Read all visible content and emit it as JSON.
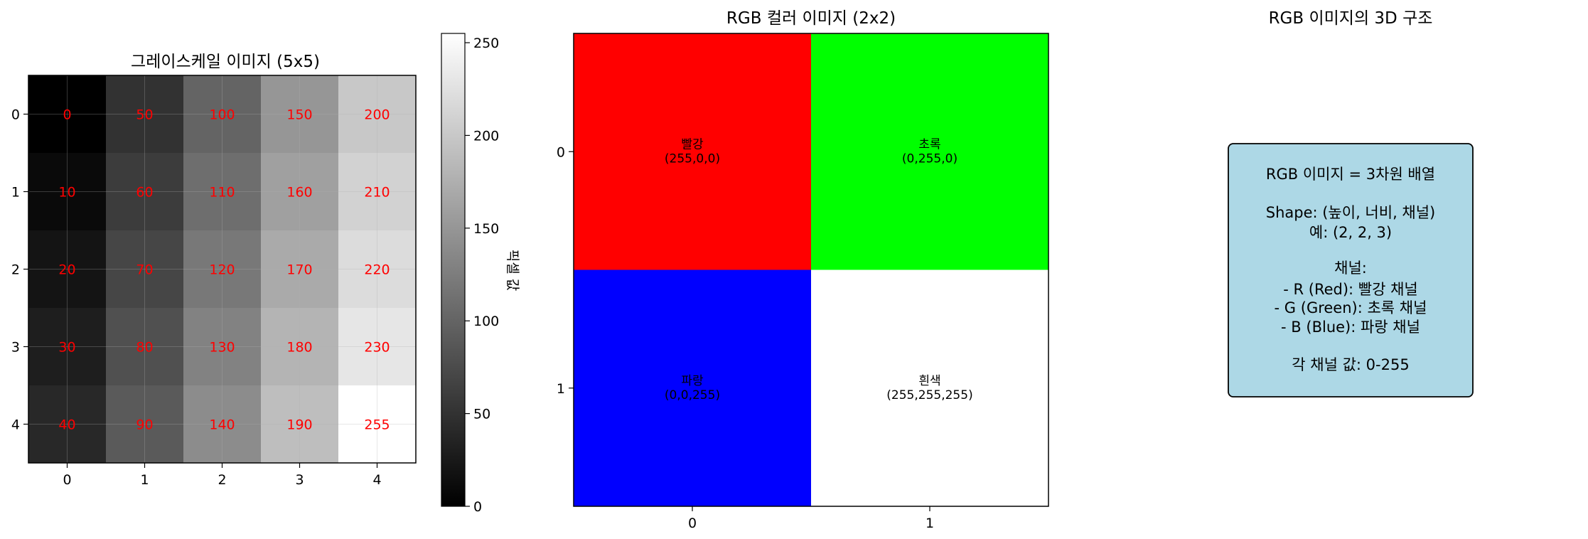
{
  "chart_data": [
    {
      "type": "heatmap",
      "title": "그레이스케일 이미지 (5x5)",
      "x_ticks": [
        "0",
        "1",
        "2",
        "3",
        "4"
      ],
      "y_ticks": [
        "0",
        "1",
        "2",
        "3",
        "4"
      ],
      "values": [
        [
          0,
          50,
          100,
          150,
          200
        ],
        [
          10,
          60,
          110,
          160,
          210
        ],
        [
          20,
          70,
          120,
          170,
          220
        ],
        [
          30,
          80,
          130,
          180,
          230
        ],
        [
          40,
          90,
          140,
          190,
          255
        ]
      ],
      "colormap": "gray",
      "value_range": [
        0,
        255
      ],
      "cell_label_color": "#ff0000",
      "colorbar": {
        "label": "픽셀 값",
        "ticks": [
          "0",
          "50",
          "100",
          "150",
          "200",
          "250"
        ],
        "tick_values": [
          0,
          50,
          100,
          150,
          200,
          250
        ]
      },
      "grid": true
    },
    {
      "type": "heatmap",
      "title": "RGB 컬러 이미지 (2x2)",
      "x_ticks": [
        "0",
        "1"
      ],
      "y_ticks": [
        "0",
        "1"
      ],
      "cells": [
        [
          {
            "name": "빨강",
            "rgb": "(255,0,0)",
            "color": "#ff0000"
          },
          {
            "name": "초록",
            "rgb": "(0,255,0)",
            "color": "#00ff00"
          }
        ],
        [
          {
            "name": "파랑",
            "rgb": "(0,0,255)",
            "color": "#0000ff"
          },
          {
            "name": "흰색",
            "rgb": "(255,255,255)",
            "color": "#ffffff"
          }
        ]
      ]
    }
  ],
  "info_panel": {
    "title": "RGB 이미지의 3D 구조",
    "background": "#add8e6",
    "lines": [
      "RGB 이미지 = 3차원 배열",
      "Shape: (높이, 너비, 채널)",
      "예: (2, 2, 3)",
      "채널:",
      "- R (Red): 빨강 채널",
      "- G (Green): 초록 채널",
      "- B (Blue): 파랑 채널",
      "각 채널 값: 0-255"
    ]
  }
}
